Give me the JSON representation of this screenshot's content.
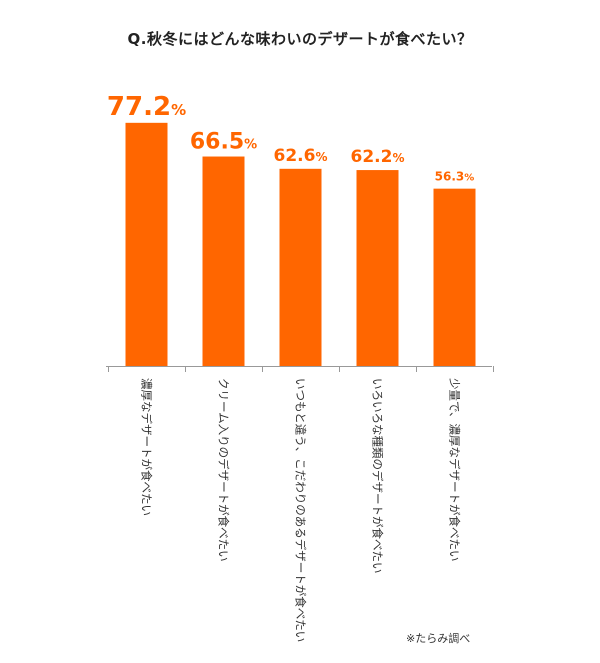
{
  "chart_data": {
    "type": "bar",
    "title": "Q.秋冬にはどんな味わいのデザートが食べたい？",
    "categories": [
      "濃厚なデザートが食べたい",
      "クリーム入りのデザートが食べたい",
      "いつもと違う、こだわりのあるデザートが食べたい",
      "いろいろな種類のデザートが食べたい",
      "少量で、濃厚なデザートが食べたい"
    ],
    "values": [
      77.2,
      66.5,
      62.6,
      62.2,
      56.3
    ],
    "value_labels": [
      "77.2",
      "66.5",
      "62.6",
      "62.2",
      "56.3"
    ],
    "unit": "%",
    "ylim": [
      0,
      100
    ],
    "bar_color": "#ff6600",
    "label_color": "#ff6600",
    "axis_color": "#999999",
    "xlabel": "",
    "ylabel": "",
    "grid": false,
    "legend": "none"
  },
  "source_note": "※たらみ調べ"
}
